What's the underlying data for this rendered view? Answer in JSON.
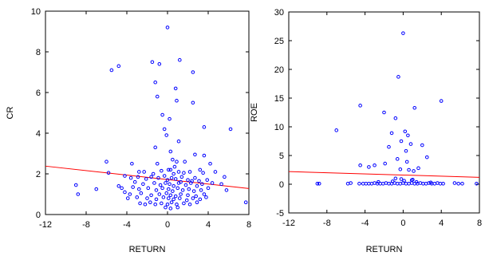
{
  "chart_data": [
    {
      "type": "scatter",
      "title": "",
      "xlabel": "RETURN",
      "ylabel": "CR",
      "xlim": [
        -12,
        8
      ],
      "ylim": [
        0,
        10
      ],
      "xticks": [
        -12,
        -8,
        -4,
        0,
        4,
        8
      ],
      "yticks": [
        0,
        2,
        4,
        6,
        8,
        10
      ],
      "grid": false,
      "marker_color": "#0000ff",
      "fit_line_color": "#ff0000",
      "fit_line": {
        "x": [
          -12,
          8
        ],
        "y": [
          2.38,
          1.28
        ]
      },
      "points": [
        [
          0,
          9.2
        ],
        [
          -5.5,
          7.1
        ],
        [
          -4.8,
          7.3
        ],
        [
          -1.5,
          7.5
        ],
        [
          -0.8,
          7.4
        ],
        [
          1.2,
          7.6
        ],
        [
          2.5,
          7.0
        ],
        [
          -1.2,
          6.5
        ],
        [
          0.8,
          6.2
        ],
        [
          -1,
          5.8
        ],
        [
          0.9,
          5.6
        ],
        [
          2.5,
          5.5
        ],
        [
          -0.5,
          4.9
        ],
        [
          0.2,
          4.7
        ],
        [
          -0.3,
          4.2
        ],
        [
          3.6,
          4.3
        ],
        [
          6.2,
          4.2
        ],
        [
          -0.1,
          3.9
        ],
        [
          1.1,
          3.6
        ],
        [
          -1.2,
          3.3
        ],
        [
          0.3,
          3.1
        ],
        [
          2.7,
          2.95
        ],
        [
          3.6,
          2.9
        ],
        [
          -6,
          2.6
        ],
        [
          -3.5,
          2.5
        ],
        [
          -1,
          2.5
        ],
        [
          0.5,
          2.7
        ],
        [
          0.9,
          2.6
        ],
        [
          1.7,
          2.6
        ],
        [
          4.2,
          2.5
        ],
        [
          -2.8,
          2.1
        ],
        [
          -2.3,
          2.1
        ],
        [
          -0.6,
          2.15
        ],
        [
          0.1,
          2.2
        ],
        [
          0.3,
          2.2
        ],
        [
          0.6,
          2.0
        ],
        [
          1.1,
          2.1
        ],
        [
          1.6,
          2.05
        ],
        [
          2.2,
          2.1
        ],
        [
          3.2,
          2.2
        ],
        [
          3.5,
          2.05
        ],
        [
          4.7,
          2.1
        ],
        [
          -5.8,
          2.05
        ],
        [
          -4.2,
          1.9
        ],
        [
          -3.6,
          1.8
        ],
        [
          -2.9,
          1.85
        ],
        [
          -2.1,
          1.75
        ],
        [
          -1.6,
          1.85
        ],
        [
          -0.9,
          1.8
        ],
        [
          -0.3,
          1.9
        ],
        [
          0,
          1.7
        ],
        [
          0.4,
          1.8
        ],
        [
          0.8,
          1.75
        ],
        [
          1.4,
          1.85
        ],
        [
          2.0,
          1.7
        ],
        [
          2.7,
          1.8
        ],
        [
          3.1,
          1.65
        ],
        [
          3.9,
          1.7
        ],
        [
          5.6,
          1.85
        ],
        [
          -3.2,
          1.6
        ],
        [
          -2.4,
          1.5
        ],
        [
          -1.3,
          1.55
        ],
        [
          -0.7,
          1.45
        ],
        [
          -0.2,
          1.55
        ],
        [
          0.2,
          1.5
        ],
        [
          0.6,
          1.4
        ],
        [
          1.1,
          1.55
        ],
        [
          1.8,
          1.45
        ],
        [
          2.3,
          1.55
        ],
        [
          2.9,
          1.4
        ],
        [
          3.4,
          1.5
        ],
        [
          4.4,
          1.55
        ],
        [
          5.3,
          1.5
        ],
        [
          -9,
          1.45
        ],
        [
          -4.8,
          1.4
        ],
        [
          -4.5,
          1.3
        ],
        [
          -3.4,
          1.35
        ],
        [
          -2.8,
          1.25
        ],
        [
          -1.9,
          1.3
        ],
        [
          -1.1,
          1.2
        ],
        [
          -0.5,
          1.3
        ],
        [
          0.1,
          1.25
        ],
        [
          0.5,
          1.15
        ],
        [
          1.0,
          1.3
        ],
        [
          1.5,
          1.2
        ],
        [
          2.1,
          1.25
        ],
        [
          2.6,
          1.15
        ],
        [
          3.3,
          1.2
        ],
        [
          4.0,
          1.3
        ],
        [
          5.8,
          1.2
        ],
        [
          -7,
          1.25
        ],
        [
          -4.2,
          1.1
        ],
        [
          -3.7,
          1.0
        ],
        [
          -2.6,
          1.05
        ],
        [
          -1.6,
          0.95
        ],
        [
          -0.8,
          1.0
        ],
        [
          -0.1,
          1.05
        ],
        [
          0.3,
          0.95
        ],
        [
          0.8,
          0.9
        ],
        [
          1.3,
          1.0
        ],
        [
          2.0,
          0.95
        ],
        [
          2.8,
          0.9
        ],
        [
          3.6,
          1.0
        ],
        [
          -8.8,
          1.0
        ],
        [
          -3.9,
          0.8
        ],
        [
          -3.0,
          0.85
        ],
        [
          -2.0,
          0.8
        ],
        [
          -1.1,
          0.75
        ],
        [
          -0.4,
          0.85
        ],
        [
          0.1,
          0.8
        ],
        [
          0.6,
          0.75
        ],
        [
          1.2,
          0.8
        ],
        [
          1.9,
          0.7
        ],
        [
          2.5,
          0.8
        ],
        [
          3.2,
          0.75
        ],
        [
          3.8,
          0.85
        ],
        [
          -2.7,
          0.55
        ],
        [
          -2.2,
          0.5
        ],
        [
          -1.7,
          0.6
        ],
        [
          -1.2,
          0.5
        ],
        [
          -0.6,
          0.55
        ],
        [
          0.0,
          0.5
        ],
        [
          0.4,
          0.6
        ],
        [
          0.9,
          0.5
        ],
        [
          1.6,
          0.55
        ],
        [
          2.2,
          0.5
        ],
        [
          2.9,
          0.6
        ],
        [
          7.7,
          0.6
        ],
        [
          -0.2,
          0.35
        ],
        [
          0.3,
          0.3
        ],
        [
          1.0,
          0.35
        ],
        [
          2.4,
          1.65
        ],
        [
          -1.4,
          2.0
        ],
        [
          0.7,
          2.35
        ],
        [
          1.3,
          1.6
        ]
      ]
    },
    {
      "type": "scatter",
      "title": "",
      "xlabel": "RETURN",
      "ylabel": "ROE",
      "xlim": [
        -12,
        8
      ],
      "ylim": [
        -5,
        30
      ],
      "xticks": [
        -12,
        -8,
        -4,
        0,
        4,
        8
      ],
      "yticks": [
        -5,
        0,
        5,
        10,
        15,
        20,
        25,
        30
      ],
      "grid": false,
      "marker_color": "#0000ff",
      "fit_line_color": "#ff0000",
      "fit_line": {
        "x": [
          -12,
          8
        ],
        "y": [
          2.2,
          1.2
        ]
      },
      "points": [
        [
          0,
          26.3
        ],
        [
          -0.5,
          18.7
        ],
        [
          4,
          14.5
        ],
        [
          -4.5,
          13.7
        ],
        [
          1.2,
          13.3
        ],
        [
          -2,
          12.5
        ],
        [
          -0.8,
          11.5
        ],
        [
          0.2,
          9.2
        ],
        [
          -7,
          9.4
        ],
        [
          -1.2,
          8.9
        ],
        [
          0.5,
          8.5
        ],
        [
          -0.2,
          7.5
        ],
        [
          0.8,
          7.0
        ],
        [
          -1.5,
          6.5
        ],
        [
          2.0,
          6.8
        ],
        [
          0.3,
          5.8
        ],
        [
          2.5,
          4.7
        ],
        [
          -0.6,
          4.4
        ],
        [
          0.4,
          3.9
        ],
        [
          -1.9,
          3.6
        ],
        [
          -4.5,
          3.3
        ],
        [
          -3.6,
          3.0
        ],
        [
          -3.0,
          3.3
        ],
        [
          1.6,
          2.8
        ],
        [
          -0.3,
          2.6
        ],
        [
          0.6,
          2.5
        ],
        [
          1.1,
          2.3
        ],
        [
          -0.8,
          1.0
        ],
        [
          0.9,
          0.7
        ],
        [
          -9,
          0.1
        ],
        [
          -8.8,
          0.1
        ],
        [
          -5.8,
          0.1
        ],
        [
          -5.5,
          0.2
        ],
        [
          -4.6,
          0.1
        ],
        [
          -4.2,
          0.1
        ],
        [
          -3.9,
          0.1
        ],
        [
          -3.6,
          0.1
        ],
        [
          -3.3,
          0.1
        ],
        [
          -3.0,
          0.2
        ],
        [
          -2.7,
          0.1
        ],
        [
          -2.4,
          0.1
        ],
        [
          -2.1,
          0.1
        ],
        [
          -1.8,
          0.2
        ],
        [
          -1.5,
          0.1
        ],
        [
          -1.2,
          0.1
        ],
        [
          -0.9,
          0.2
        ],
        [
          -0.6,
          0.1
        ],
        [
          -0.3,
          0.1
        ],
        [
          0.0,
          0.2
        ],
        [
          0.3,
          0.1
        ],
        [
          0.6,
          0.1
        ],
        [
          0.9,
          0.2
        ],
        [
          1.2,
          0.1
        ],
        [
          1.5,
          0.1
        ],
        [
          1.8,
          0.2
        ],
        [
          2.1,
          0.1
        ],
        [
          2.4,
          0.1
        ],
        [
          2.7,
          0.2
        ],
        [
          3.0,
          0.1
        ],
        [
          3.3,
          0.1
        ],
        [
          3.6,
          0.2
        ],
        [
          3.9,
          0.1
        ],
        [
          4.2,
          0.1
        ],
        [
          5.4,
          0.2
        ],
        [
          5.8,
          0.1
        ],
        [
          6.2,
          0.1
        ],
        [
          7.7,
          0.1
        ],
        [
          -2.6,
          0.4
        ],
        [
          -1.1,
          0.5
        ],
        [
          0.1,
          0.6
        ],
        [
          1.4,
          0.4
        ],
        [
          2.9,
          0.3
        ],
        [
          -0.2,
          0.9
        ],
        [
          1.0,
          0.8
        ]
      ]
    }
  ]
}
